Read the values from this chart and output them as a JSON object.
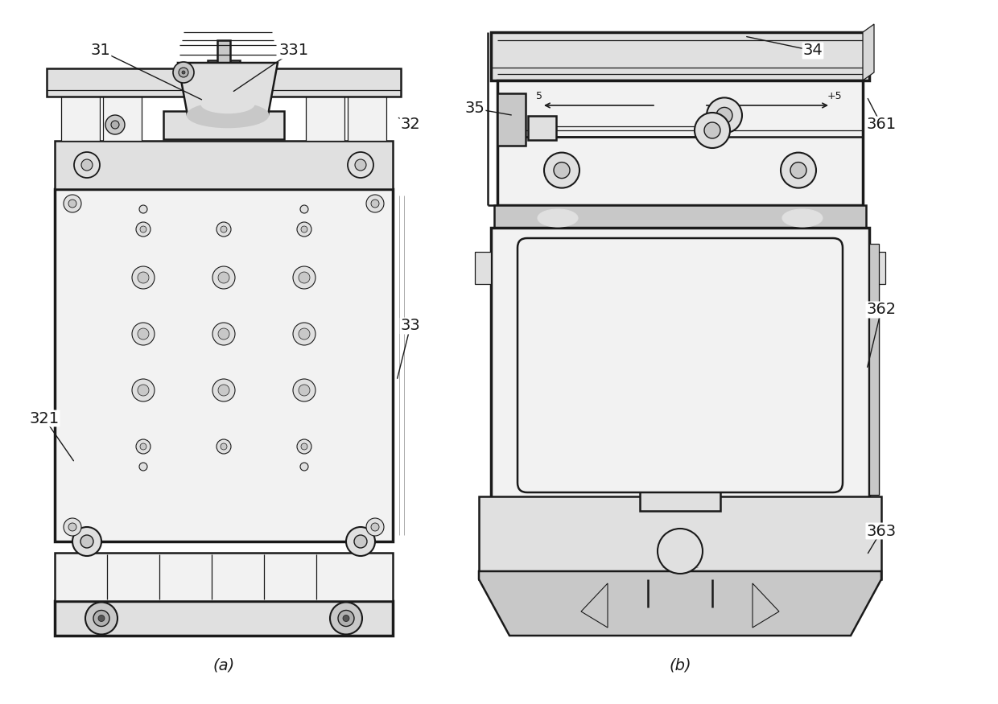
{
  "background_color": "#ffffff",
  "line_color": "#1a1a1a",
  "lw_main": 1.8,
  "lw_thick": 2.5,
  "lw_thin": 0.9,
  "font_size_labels": 14,
  "font_size_caption": 14,
  "caption_a": "(a)",
  "caption_b": "(b)",
  "gray_body": "#f2f2f2",
  "gray_mid": "#e0e0e0",
  "gray_dark": "#c8c8c8",
  "gray_shadow": "#b0b0b0"
}
